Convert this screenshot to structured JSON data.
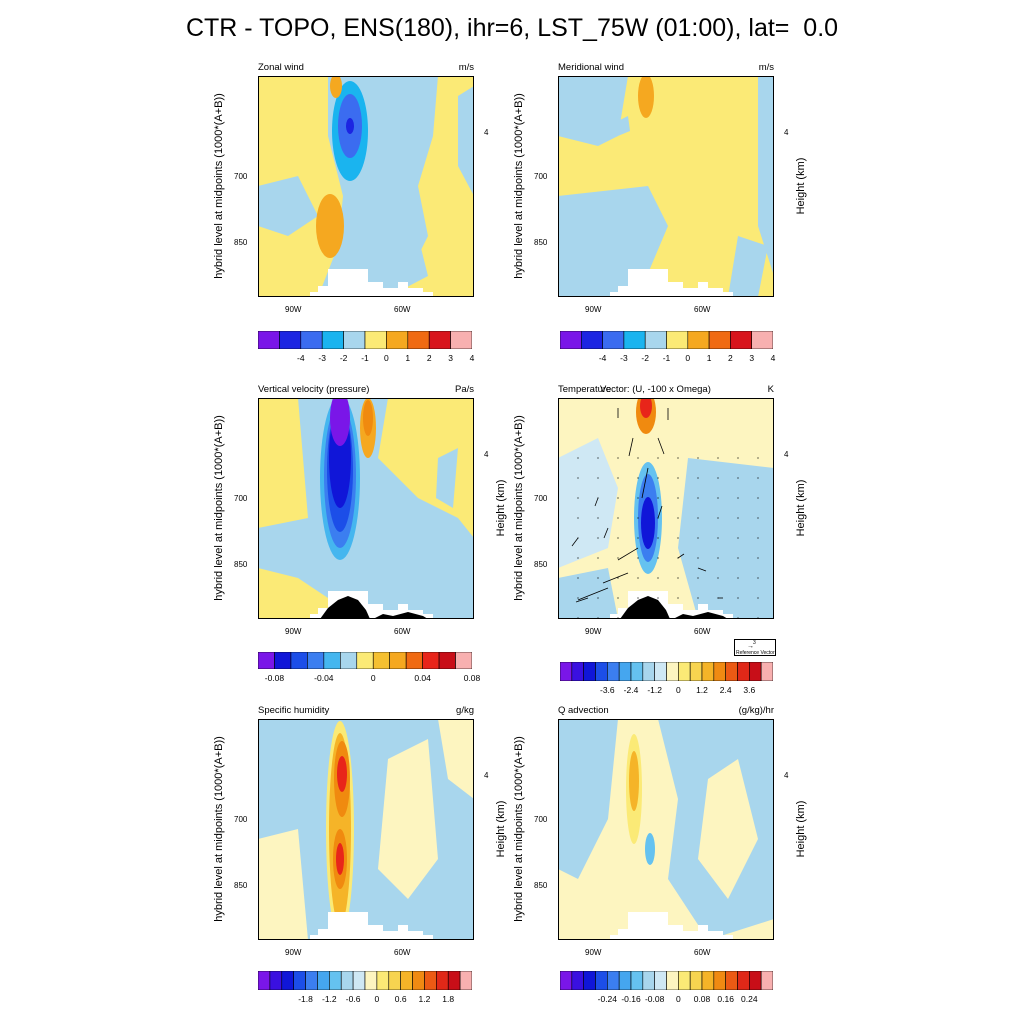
{
  "figure": {
    "title": "CTR - TOPO, ENS(180), ihr=6, LST_75W (01:00), lat=  0.0"
  },
  "colors": {
    "yellow": "#fbea76",
    "light_blue": "#a8d6ed",
    "orange": "#f5a820",
    "dark_orange": "#f08a0f",
    "red": "#e8251a",
    "cyan": "#1ab4ef",
    "blue": "#3b6cf0",
    "dark_blue": "#1016d8",
    "purple": "#7a16e8",
    "topo_black": "#000000"
  },
  "chart_data": [
    {
      "type": "heatmap",
      "title": "Zonal wind",
      "units": "m/s",
      "ylabel": "hybrid level at midpoints (1000*(A+B))",
      "y2label": "",
      "xticks": [
        "90W",
        "60W"
      ],
      "yticks": [
        "700",
        "850"
      ],
      "y2ticks": [
        "4"
      ],
      "colorbar": {
        "labels": [
          "-4",
          "-3",
          "-2",
          "-1",
          "0",
          "1",
          "2",
          "3",
          "4"
        ],
        "colors": [
          "#7a16e8",
          "#1c25e2",
          "#3b6cf0",
          "#1ab4ef",
          "#a8d6ed",
          "#fbea76",
          "#f5a820",
          "#f06a12",
          "#d8141c",
          "#f8b0b0"
        ]
      }
    },
    {
      "type": "heatmap",
      "title": "Meridional wind",
      "units": "m/s",
      "ylabel": "hybrid level at midpoints (1000*(A+B))",
      "y2label": "Height (km)",
      "xticks": [
        "90W",
        "60W"
      ],
      "yticks": [
        "700",
        "850"
      ],
      "y2ticks": [
        "4"
      ],
      "colorbar": {
        "labels": [
          "-4",
          "-3",
          "-2",
          "-1",
          "0",
          "1",
          "2",
          "3",
          "4"
        ],
        "colors": [
          "#7a16e8",
          "#1c25e2",
          "#3b6cf0",
          "#1ab4ef",
          "#a8d6ed",
          "#fbea76",
          "#f5a820",
          "#f06a12",
          "#d8141c",
          "#f8b0b0"
        ]
      }
    },
    {
      "type": "heatmap",
      "title": "Vertical velocity (pressure)",
      "units": "Pa/s",
      "ylabel": "hybrid level at midpoints (1000*(A+B))",
      "y2label": "Height (km)",
      "xticks": [
        "90W",
        "60W"
      ],
      "yticks": [
        "700",
        "850"
      ],
      "y2ticks": [
        "4"
      ],
      "colorbar": {
        "labels": [
          "-0.08",
          "-0.04",
          "0",
          "0.04",
          "0.08"
        ],
        "colors": [
          "#7a16e8",
          "#1016d8",
          "#1c4ee8",
          "#3b7ef0",
          "#45b6ef",
          "#a8d6ed",
          "#fbea76",
          "#f5c030",
          "#f5a820",
          "#f06a12",
          "#e8251a",
          "#c80e18",
          "#f8b0b0"
        ]
      }
    },
    {
      "type": "heatmap",
      "title": "Temperature",
      "subtitle": "Vector: (U, -100 x Omega)",
      "units": "K",
      "ylabel": "hybrid level at midpoints (1000*(A+B))",
      "y2label": "Height (km)",
      "xticks": [
        "90W",
        "60W"
      ],
      "yticks": [
        "700",
        "850"
      ],
      "y2ticks": [
        "4"
      ],
      "reference_vector": {
        "value": "3",
        "label": "Reference Vector"
      },
      "colorbar": {
        "labels": [
          "-3.6",
          "-2.4",
          "-1.2",
          "0",
          "1.2",
          "2.4",
          "3.6"
        ],
        "colors": [
          "#7a16e8",
          "#3a10e0",
          "#1016d8",
          "#1c4ee8",
          "#3b7ef0",
          "#45a6ef",
          "#65c2f0",
          "#a8d6ed",
          "#cfe8f4",
          "#fdf5c0",
          "#fbea76",
          "#f7d450",
          "#f5b428",
          "#f08a12",
          "#ec5a14",
          "#e02818",
          "#c80e18",
          "#f8b0b0"
        ]
      }
    },
    {
      "type": "heatmap",
      "title": "Specific humidity",
      "units": "g/kg",
      "ylabel": "hybrid level at midpoints (1000*(A+B))",
      "y2label": "Height (km)",
      "xticks": [
        "90W",
        "60W"
      ],
      "yticks": [
        "700",
        "850"
      ],
      "y2ticks": [
        "4"
      ],
      "colorbar": {
        "labels": [
          "-1.8",
          "-1.2",
          "-0.6",
          "0",
          "0.6",
          "1.2",
          "1.8"
        ],
        "colors": [
          "#7a16e8",
          "#3a10e0",
          "#1016d8",
          "#1c4ee8",
          "#3b7ef0",
          "#45a6ef",
          "#65c2f0",
          "#a8d6ed",
          "#cfe8f4",
          "#fdf5c0",
          "#fbea76",
          "#f7d450",
          "#f5b428",
          "#f08a12",
          "#ec5a14",
          "#e02818",
          "#c80e18",
          "#f8b0b0"
        ]
      }
    },
    {
      "type": "heatmap",
      "title": "Q advection",
      "units": "(g/kg)/hr",
      "ylabel": "hybrid level at midpoints (1000*(A+B))",
      "y2label": "Height (km)",
      "xticks": [
        "90W",
        "60W"
      ],
      "yticks": [
        "700",
        "850"
      ],
      "y2ticks": [
        "4"
      ],
      "colorbar": {
        "labels": [
          "-0.24",
          "-0.16",
          "-0.08",
          "0",
          "0.08",
          "0.16",
          "0.24"
        ],
        "colors": [
          "#7a16e8",
          "#3a10e0",
          "#1016d8",
          "#1c4ee8",
          "#3b7ef0",
          "#45a6ef",
          "#65c2f0",
          "#a8d6ed",
          "#cfe8f4",
          "#fdf5c0",
          "#fbea76",
          "#f7d450",
          "#f5b428",
          "#f08a12",
          "#ec5a14",
          "#e02818",
          "#c80e18",
          "#f8b0b0"
        ]
      }
    }
  ]
}
